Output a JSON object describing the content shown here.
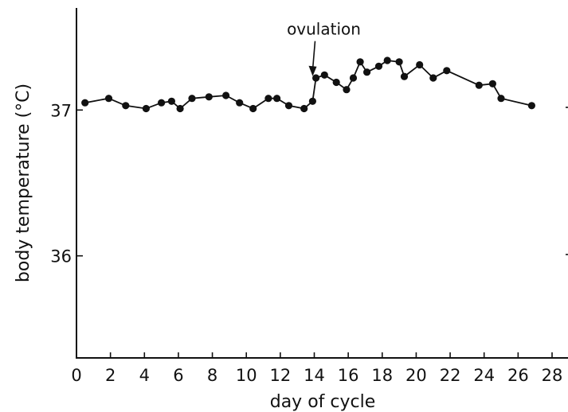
{
  "chart_data": {
    "type": "line",
    "xlabel": "day of cycle",
    "ylabel": "body temperature (°C)",
    "xlim": [
      0,
      28
    ],
    "ylim": [
      35.3,
      37.7
    ],
    "x_ticks": [
      0,
      2,
      4,
      6,
      8,
      10,
      12,
      14,
      16,
      18,
      20,
      22,
      24,
      26,
      28
    ],
    "y_ticks": [
      {
        "value": 36,
        "label": "36"
      },
      {
        "value": 37,
        "label": "37"
      }
    ],
    "grid": false,
    "annotation": {
      "text": "ovulation",
      "x": 14.0,
      "y": 37.2
    },
    "series": [
      {
        "x": [
          0.5,
          1.9,
          2.9,
          4.1,
          5.0,
          5.6,
          6.1,
          6.8,
          7.8,
          8.8,
          9.6,
          10.4,
          11.3,
          11.8,
          12.5,
          13.4,
          13.9,
          14.1,
          14.6,
          15.3,
          15.9,
          16.3,
          16.7,
          17.1,
          17.8,
          18.3,
          19.0,
          19.3,
          20.2,
          21.0,
          21.8,
          23.7,
          24.5,
          25.0,
          26.8
        ],
        "y": [
          37.05,
          37.08,
          37.03,
          37.01,
          37.05,
          37.06,
          37.01,
          37.08,
          37.09,
          37.1,
          37.05,
          37.01,
          37.08,
          37.08,
          37.03,
          37.01,
          37.06,
          37.22,
          37.24,
          37.19,
          37.14,
          37.22,
          37.33,
          37.26,
          37.3,
          37.34,
          37.33,
          37.23,
          37.31,
          37.22,
          37.27,
          37.17,
          37.18,
          37.08,
          37.03
        ]
      }
    ]
  }
}
